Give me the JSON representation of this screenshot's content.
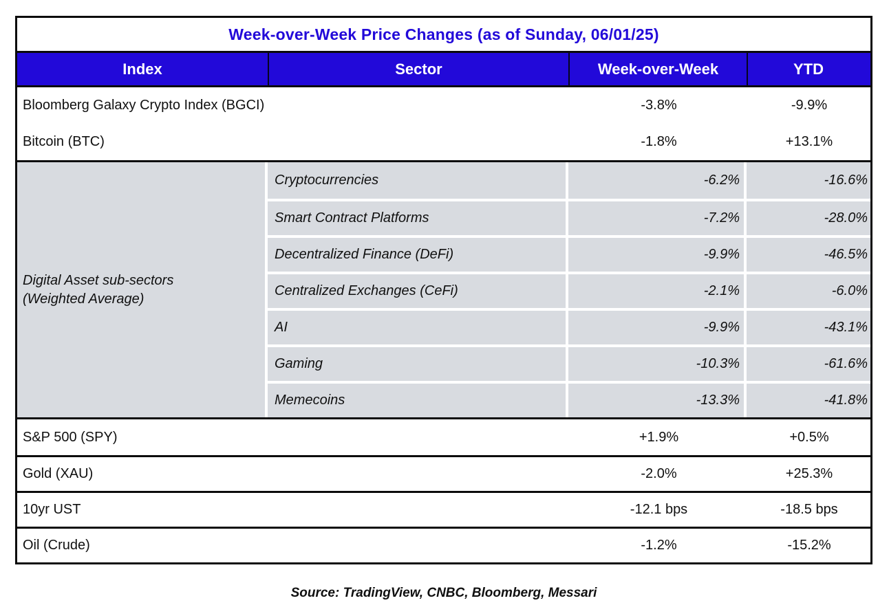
{
  "title": "Week-over-Week Price Changes (as of Sunday, 06/01/25)",
  "columns": {
    "index": "Index",
    "sector": "Sector",
    "wow": "Week-over-Week",
    "ytd": "YTD"
  },
  "top_rows": [
    {
      "index": "Bloomberg Galaxy Crypto Index (BGCI)",
      "wow": "-3.8%",
      "ytd": "-9.9%"
    },
    {
      "index": "Bitcoin (BTC)",
      "wow": "-1.8%",
      "ytd": "+13.1%"
    }
  ],
  "subsector_group": {
    "label_line1": "Digital Asset sub-sectors",
    "label_line2": "(Weighted Average)",
    "rows": [
      {
        "sector": "Cryptocurrencies",
        "wow": "-6.2%",
        "ytd": "-16.6%"
      },
      {
        "sector": "Smart Contract Platforms",
        "wow": "-7.2%",
        "ytd": "-28.0%"
      },
      {
        "sector": "Decentralized Finance (DeFi)",
        "wow": "-9.9%",
        "ytd": "-46.5%"
      },
      {
        "sector": "Centralized Exchanges (CeFi)",
        "wow": "-2.1%",
        "ytd": "-6.0%"
      },
      {
        "sector": "AI",
        "wow": "-9.9%",
        "ytd": "-43.1%"
      },
      {
        "sector": "Gaming",
        "wow": "-10.3%",
        "ytd": "-61.6%"
      },
      {
        "sector": "Memecoins",
        "wow": "-13.3%",
        "ytd": "-41.8%"
      }
    ]
  },
  "bottom_rows": [
    {
      "index": "S&P 500 (SPY)",
      "wow": "+1.9%",
      "ytd": "+0.5%"
    },
    {
      "index": "Gold (XAU)",
      "wow": "-2.0%",
      "ytd": "+25.3%"
    },
    {
      "index": "10yr UST",
      "wow": "-12.1 bps",
      "ytd": "-18.5 bps"
    },
    {
      "index": "Oil (Crude)",
      "wow": "-1.2%",
      "ytd": "-15.2%"
    }
  ],
  "footer": "Source: TradingView, CNBC, Bloomberg, Messari",
  "colors": {
    "header_blue": "#2209d9",
    "row_gray": "#d8dbe0",
    "border_black": "#0b0b0b",
    "separator_white": "#ffffff"
  },
  "chart_data": {
    "type": "table",
    "title": "Week-over-Week Price Changes (as of Sunday, 06/01/25)",
    "columns": [
      "Index",
      "Sector",
      "Week-over-Week",
      "YTD"
    ],
    "rows": [
      [
        "Bloomberg Galaxy Crypto Index (BGCI)",
        "",
        "-3.8%",
        "-9.9%"
      ],
      [
        "Bitcoin (BTC)",
        "",
        "-1.8%",
        "+13.1%"
      ],
      [
        "Digital Asset sub-sectors (Weighted Average)",
        "Cryptocurrencies",
        "-6.2%",
        "-16.6%"
      ],
      [
        "Digital Asset sub-sectors (Weighted Average)",
        "Smart Contract Platforms",
        "-7.2%",
        "-28.0%"
      ],
      [
        "Digital Asset sub-sectors (Weighted Average)",
        "Decentralized Finance (DeFi)",
        "-9.9%",
        "-46.5%"
      ],
      [
        "Digital Asset sub-sectors (Weighted Average)",
        "Centralized Exchanges (CeFi)",
        "-2.1%",
        "-6.0%"
      ],
      [
        "Digital Asset sub-sectors (Weighted Average)",
        "AI",
        "-9.9%",
        "-43.1%"
      ],
      [
        "Digital Asset sub-sectors (Weighted Average)",
        "Gaming",
        "-10.3%",
        "-61.6%"
      ],
      [
        "Digital Asset sub-sectors (Weighted Average)",
        "Memecoins",
        "-13.3%",
        "-41.8%"
      ],
      [
        "S&P 500 (SPY)",
        "",
        "+1.9%",
        "+0.5%"
      ],
      [
        "Gold (XAU)",
        "",
        "-2.0%",
        "+25.3%"
      ],
      [
        "10yr UST",
        "",
        "-12.1 bps",
        "-18.5 bps"
      ],
      [
        "Oil (Crude)",
        "",
        "-1.2%",
        "-15.2%"
      ]
    ],
    "footnote": "Source: TradingView, CNBC, Bloomberg, Messari"
  }
}
